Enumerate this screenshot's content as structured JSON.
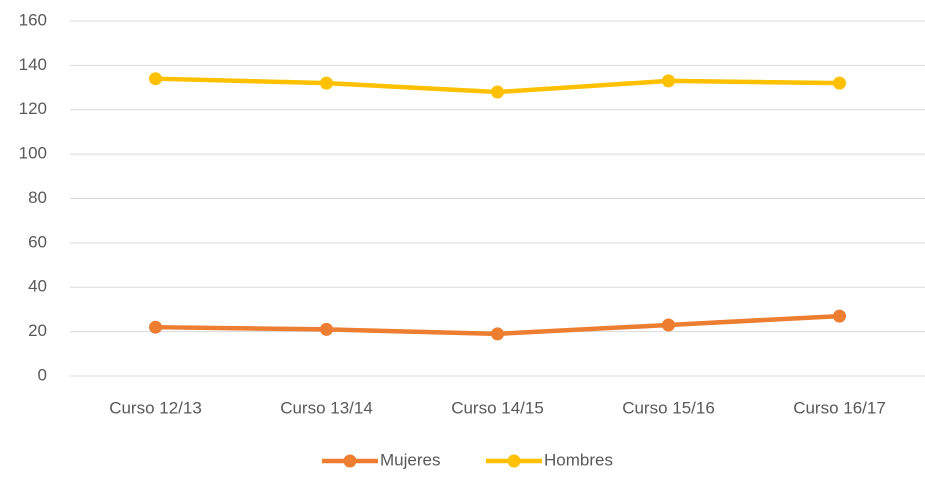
{
  "chart_data": {
    "type": "line",
    "categories": [
      "Curso 12/13",
      "Curso 13/14",
      "Curso 14/15",
      "Curso 15/16",
      "Curso 16/17"
    ],
    "series": [
      {
        "name": "Mujeres",
        "color": "#ed7d31",
        "values": [
          22,
          21,
          19,
          23,
          27
        ]
      },
      {
        "name": "Hombres",
        "color": "#ffc000",
        "values": [
          134,
          132,
          128,
          133,
          132
        ]
      }
    ],
    "ylim": [
      0,
      160
    ],
    "yticks": [
      0,
      20,
      40,
      60,
      80,
      100,
      120,
      140,
      160
    ],
    "grid": true,
    "legend": "bottom"
  }
}
